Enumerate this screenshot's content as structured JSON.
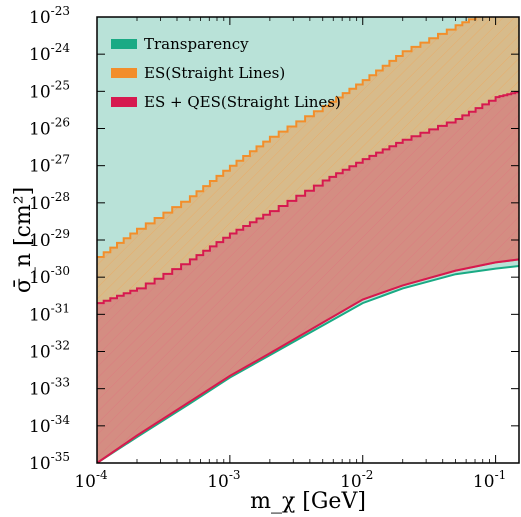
{
  "chart_data": {
    "type": "area",
    "xlabel": "m_χ [GeV]",
    "ylabel": "σ̄_n [cm²]",
    "xscale": "log",
    "yscale": "log",
    "xlim": [
      0.0001,
      0.15
    ],
    "ylim": [
      1e-35,
      1e-23
    ],
    "legend_position": "top-left",
    "grid": false,
    "x_ticks": [
      {
        "value": 0.0001,
        "base": "10",
        "exp": "-4"
      },
      {
        "value": 0.001,
        "base": "10",
        "exp": "-3"
      },
      {
        "value": 0.01,
        "base": "10",
        "exp": "-2"
      },
      {
        "value": 0.1,
        "base": "10",
        "exp": "-1"
      }
    ],
    "y_ticks": [
      {
        "value": 1e-35,
        "base": "10",
        "exp": "-35"
      },
      {
        "value": 1e-34,
        "base": "10",
        "exp": "-34"
      },
      {
        "value": 1e-33,
        "base": "10",
        "exp": "-33"
      },
      {
        "value": 1e-32,
        "base": "10",
        "exp": "-32"
      },
      {
        "value": 1e-31,
        "base": "10",
        "exp": "-31"
      },
      {
        "value": 1e-30,
        "base": "10",
        "exp": "-30"
      },
      {
        "value": 1e-29,
        "base": "10",
        "exp": "-29"
      },
      {
        "value": 1e-28,
        "base": "10",
        "exp": "-28"
      },
      {
        "value": 1e-27,
        "base": "10",
        "exp": "-27"
      },
      {
        "value": 1e-26,
        "base": "10",
        "exp": "-26"
      },
      {
        "value": 1e-25,
        "base": "10",
        "exp": "-25"
      },
      {
        "value": 1e-24,
        "base": "10",
        "exp": "-24"
      },
      {
        "value": 1e-23,
        "base": "10",
        "exp": "-23"
      }
    ],
    "series": [
      {
        "name": "Transparency",
        "color": "#1aaa84",
        "fill": "#b9e2d8",
        "lower": [
          [
            0.0001,
            1e-35
          ],
          [
            0.0002,
            5e-35
          ],
          [
            0.0005,
            4e-34
          ],
          [
            0.001,
            2e-33
          ],
          [
            0.002,
            8e-33
          ],
          [
            0.005,
            5e-32
          ],
          [
            0.01,
            2e-31
          ],
          [
            0.02,
            5e-31
          ],
          [
            0.05,
            1.2e-30
          ],
          [
            0.1,
            1.7e-30
          ],
          [
            0.15,
            2e-30
          ]
        ],
        "upper": [
          [
            0.0001,
            1e-23
          ],
          [
            0.15,
            1e-23
          ]
        ]
      },
      {
        "name": "ES(Straight Lines)",
        "color": "#f28e2b",
        "fill": "#d8b887",
        "lower": [
          [
            0.0001,
            1e-35
          ],
          [
            0.0002,
            5.5e-35
          ],
          [
            0.0005,
            4.5e-34
          ],
          [
            0.001,
            2.2e-33
          ],
          [
            0.002,
            9e-33
          ],
          [
            0.005,
            6e-32
          ],
          [
            0.01,
            2.5e-31
          ],
          [
            0.02,
            6e-31
          ],
          [
            0.05,
            1.5e-30
          ],
          [
            0.1,
            2.5e-30
          ],
          [
            0.15,
            3e-30
          ]
        ],
        "upper": [
          [
            0.0001,
            3.5e-30
          ],
          [
            0.0002,
            2e-29
          ],
          [
            0.0005,
            1.5e-28
          ],
          [
            0.001,
            1e-27
          ],
          [
            0.002,
            6e-27
          ],
          [
            0.005,
            4e-26
          ],
          [
            0.01,
            2e-25
          ],
          [
            0.02,
            1.2e-24
          ],
          [
            0.05,
            6e-24
          ],
          [
            0.1,
            1.8e-23
          ],
          [
            0.15,
            3e-23
          ]
        ]
      },
      {
        "name": "ES + QES(Straight Lines)",
        "color": "#d6194f",
        "fill": "#d48a82",
        "lower": [
          [
            0.0001,
            1e-35
          ],
          [
            0.0002,
            5.5e-35
          ],
          [
            0.0005,
            4.5e-34
          ],
          [
            0.001,
            2.2e-33
          ],
          [
            0.002,
            9e-33
          ],
          [
            0.005,
            6e-32
          ],
          [
            0.01,
            2.5e-31
          ],
          [
            0.02,
            6e-31
          ],
          [
            0.05,
            1.5e-30
          ],
          [
            0.1,
            2.5e-30
          ],
          [
            0.15,
            3e-30
          ]
        ],
        "upper": [
          [
            0.0001,
            2e-31
          ],
          [
            0.0002,
            5e-31
          ],
          [
            0.0005,
            3e-30
          ],
          [
            0.001,
            1.5e-29
          ],
          [
            0.002,
            6e-29
          ],
          [
            0.005,
            4e-28
          ],
          [
            0.01,
            1.5e-27
          ],
          [
            0.02,
            5e-27
          ],
          [
            0.05,
            1.8e-26
          ],
          [
            0.1,
            7e-26
          ],
          [
            0.15,
            1e-25
          ]
        ]
      }
    ]
  }
}
